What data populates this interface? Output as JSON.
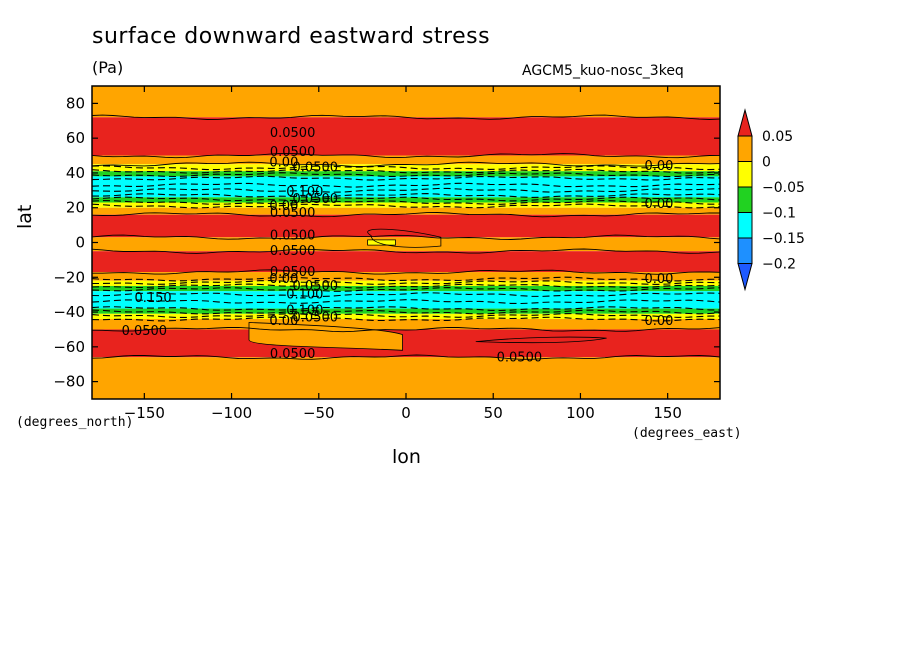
{
  "header": {
    "title": "surface downward eastward stress",
    "units": "(Pa)",
    "run_name": "AGCM5_kuo-nosc_3keq"
  },
  "axes": {
    "y_unit_label": "(degrees_north)",
    "x_unit_label": "(degrees_east)",
    "xlabel": "lon",
    "ylabel": "lat"
  },
  "chart_data": {
    "type": "heatmap",
    "title": "surface downward eastward stress",
    "xlabel": "lon",
    "ylabel": "lat",
    "xlim": [
      -180,
      180
    ],
    "ylim": [
      -90,
      90
    ],
    "xticks": [
      -150,
      -100,
      -50,
      0,
      50,
      100,
      150
    ],
    "yticks": [
      -80,
      -60,
      -40,
      -20,
      0,
      20,
      40,
      60,
      80
    ],
    "colorbar": {
      "levels": [
        0.05,
        0,
        -0.05,
        -0.1,
        -0.15,
        -0.2
      ],
      "tick_labels": [
        "0.05",
        "0",
        "−0.05",
        "−0.1",
        "−0.15",
        "−0.2"
      ],
      "colors": [
        "#e8231e",
        "#ffa500",
        "#ffff00",
        "#21d221",
        "#00ffff",
        "#1e90ff",
        "#1e5aff"
      ]
    },
    "zonal_bands": [
      {
        "lat_min": 72,
        "lat_max": 90,
        "color": "#ffa500"
      },
      {
        "lat_min": 50,
        "lat_max": 72,
        "color": "#e8231e"
      },
      {
        "lat_min": 45,
        "lat_max": 50,
        "color": "#ffa500"
      },
      {
        "lat_min": 41,
        "lat_max": 45,
        "color": "#ffff00"
      },
      {
        "lat_min": 38,
        "lat_max": 41,
        "color": "#21d221"
      },
      {
        "lat_min": 26,
        "lat_max": 38,
        "color": "#00ffff"
      },
      {
        "lat_min": 23,
        "lat_max": 26,
        "color": "#21d221"
      },
      {
        "lat_min": 20,
        "lat_max": 23,
        "color": "#ffff00"
      },
      {
        "lat_min": 16,
        "lat_max": 20,
        "color": "#ffa500"
      },
      {
        "lat_min": 3,
        "lat_max": 16,
        "color": "#e8231e"
      },
      {
        "lat_min": -5,
        "lat_max": 3,
        "color": "#ffa500"
      },
      {
        "lat_min": -17,
        "lat_max": -5,
        "color": "#e8231e"
      },
      {
        "lat_min": -22,
        "lat_max": -17,
        "color": "#ffa500"
      },
      {
        "lat_min": -25,
        "lat_max": -22,
        "color": "#ffff00"
      },
      {
        "lat_min": -28,
        "lat_max": -25,
        "color": "#21d221"
      },
      {
        "lat_min": -38,
        "lat_max": -28,
        "color": "#00ffff"
      },
      {
        "lat_min": -41,
        "lat_max": -38,
        "color": "#21d221"
      },
      {
        "lat_min": -44,
        "lat_max": -41,
        "color": "#ffff00"
      },
      {
        "lat_min": -50,
        "lat_max": -44,
        "color": "#ffa500"
      },
      {
        "lat_min": -66,
        "lat_max": -50,
        "color": "#e8231e"
      },
      {
        "lat_min": -90,
        "lat_max": -66,
        "color": "#ffa500"
      }
    ],
    "contour_labels": [
      {
        "text": "0.0500",
        "lon": -65,
        "lat": 63
      },
      {
        "text": "0.0500",
        "lon": -65,
        "lat": 52
      },
      {
        "text": "0.00",
        "lon": -70,
        "lat": 46
      },
      {
        "text": "0.0500",
        "lon": -52,
        "lat": 43
      },
      {
        "text": "0.100",
        "lon": -58,
        "lat": 29
      },
      {
        "text": "0.0500",
        "lon": -52,
        "lat": 25
      },
      {
        "text": "0.00",
        "lon": -70,
        "lat": 21
      },
      {
        "text": "0.0500",
        "lon": -65,
        "lat": 17
      },
      {
        "text": "0.0500",
        "lon": -65,
        "lat": 4
      },
      {
        "text": "0.0500",
        "lon": -65,
        "lat": -5
      },
      {
        "text": "0.0500",
        "lon": -65,
        "lat": -17
      },
      {
        "text": "0.00",
        "lon": -70,
        "lat": -21
      },
      {
        "text": "0.0500",
        "lon": -52,
        "lat": -25
      },
      {
        "text": "0.100",
        "lon": -58,
        "lat": -30
      },
      {
        "text": "0.100",
        "lon": -58,
        "lat": -39
      },
      {
        "text": "0.0500",
        "lon": -52,
        "lat": -43
      },
      {
        "text": "0.00",
        "lon": -70,
        "lat": -45
      },
      {
        "text": "0.0500",
        "lon": -65,
        "lat": -64
      },
      {
        "text": "0.150",
        "lon": -145,
        "lat": -32
      },
      {
        "text": "0.0500",
        "lon": -150,
        "lat": -51
      },
      {
        "text": "0.00",
        "lon": 145,
        "lat": 44
      },
      {
        "text": "0.00",
        "lon": 145,
        "lat": 22
      },
      {
        "text": "0.00",
        "lon": 145,
        "lat": -21
      },
      {
        "text": "0.00",
        "lon": 145,
        "lat": -45
      },
      {
        "text": "0.0500",
        "lon": 65,
        "lat": -66
      }
    ],
    "grid": false
  }
}
